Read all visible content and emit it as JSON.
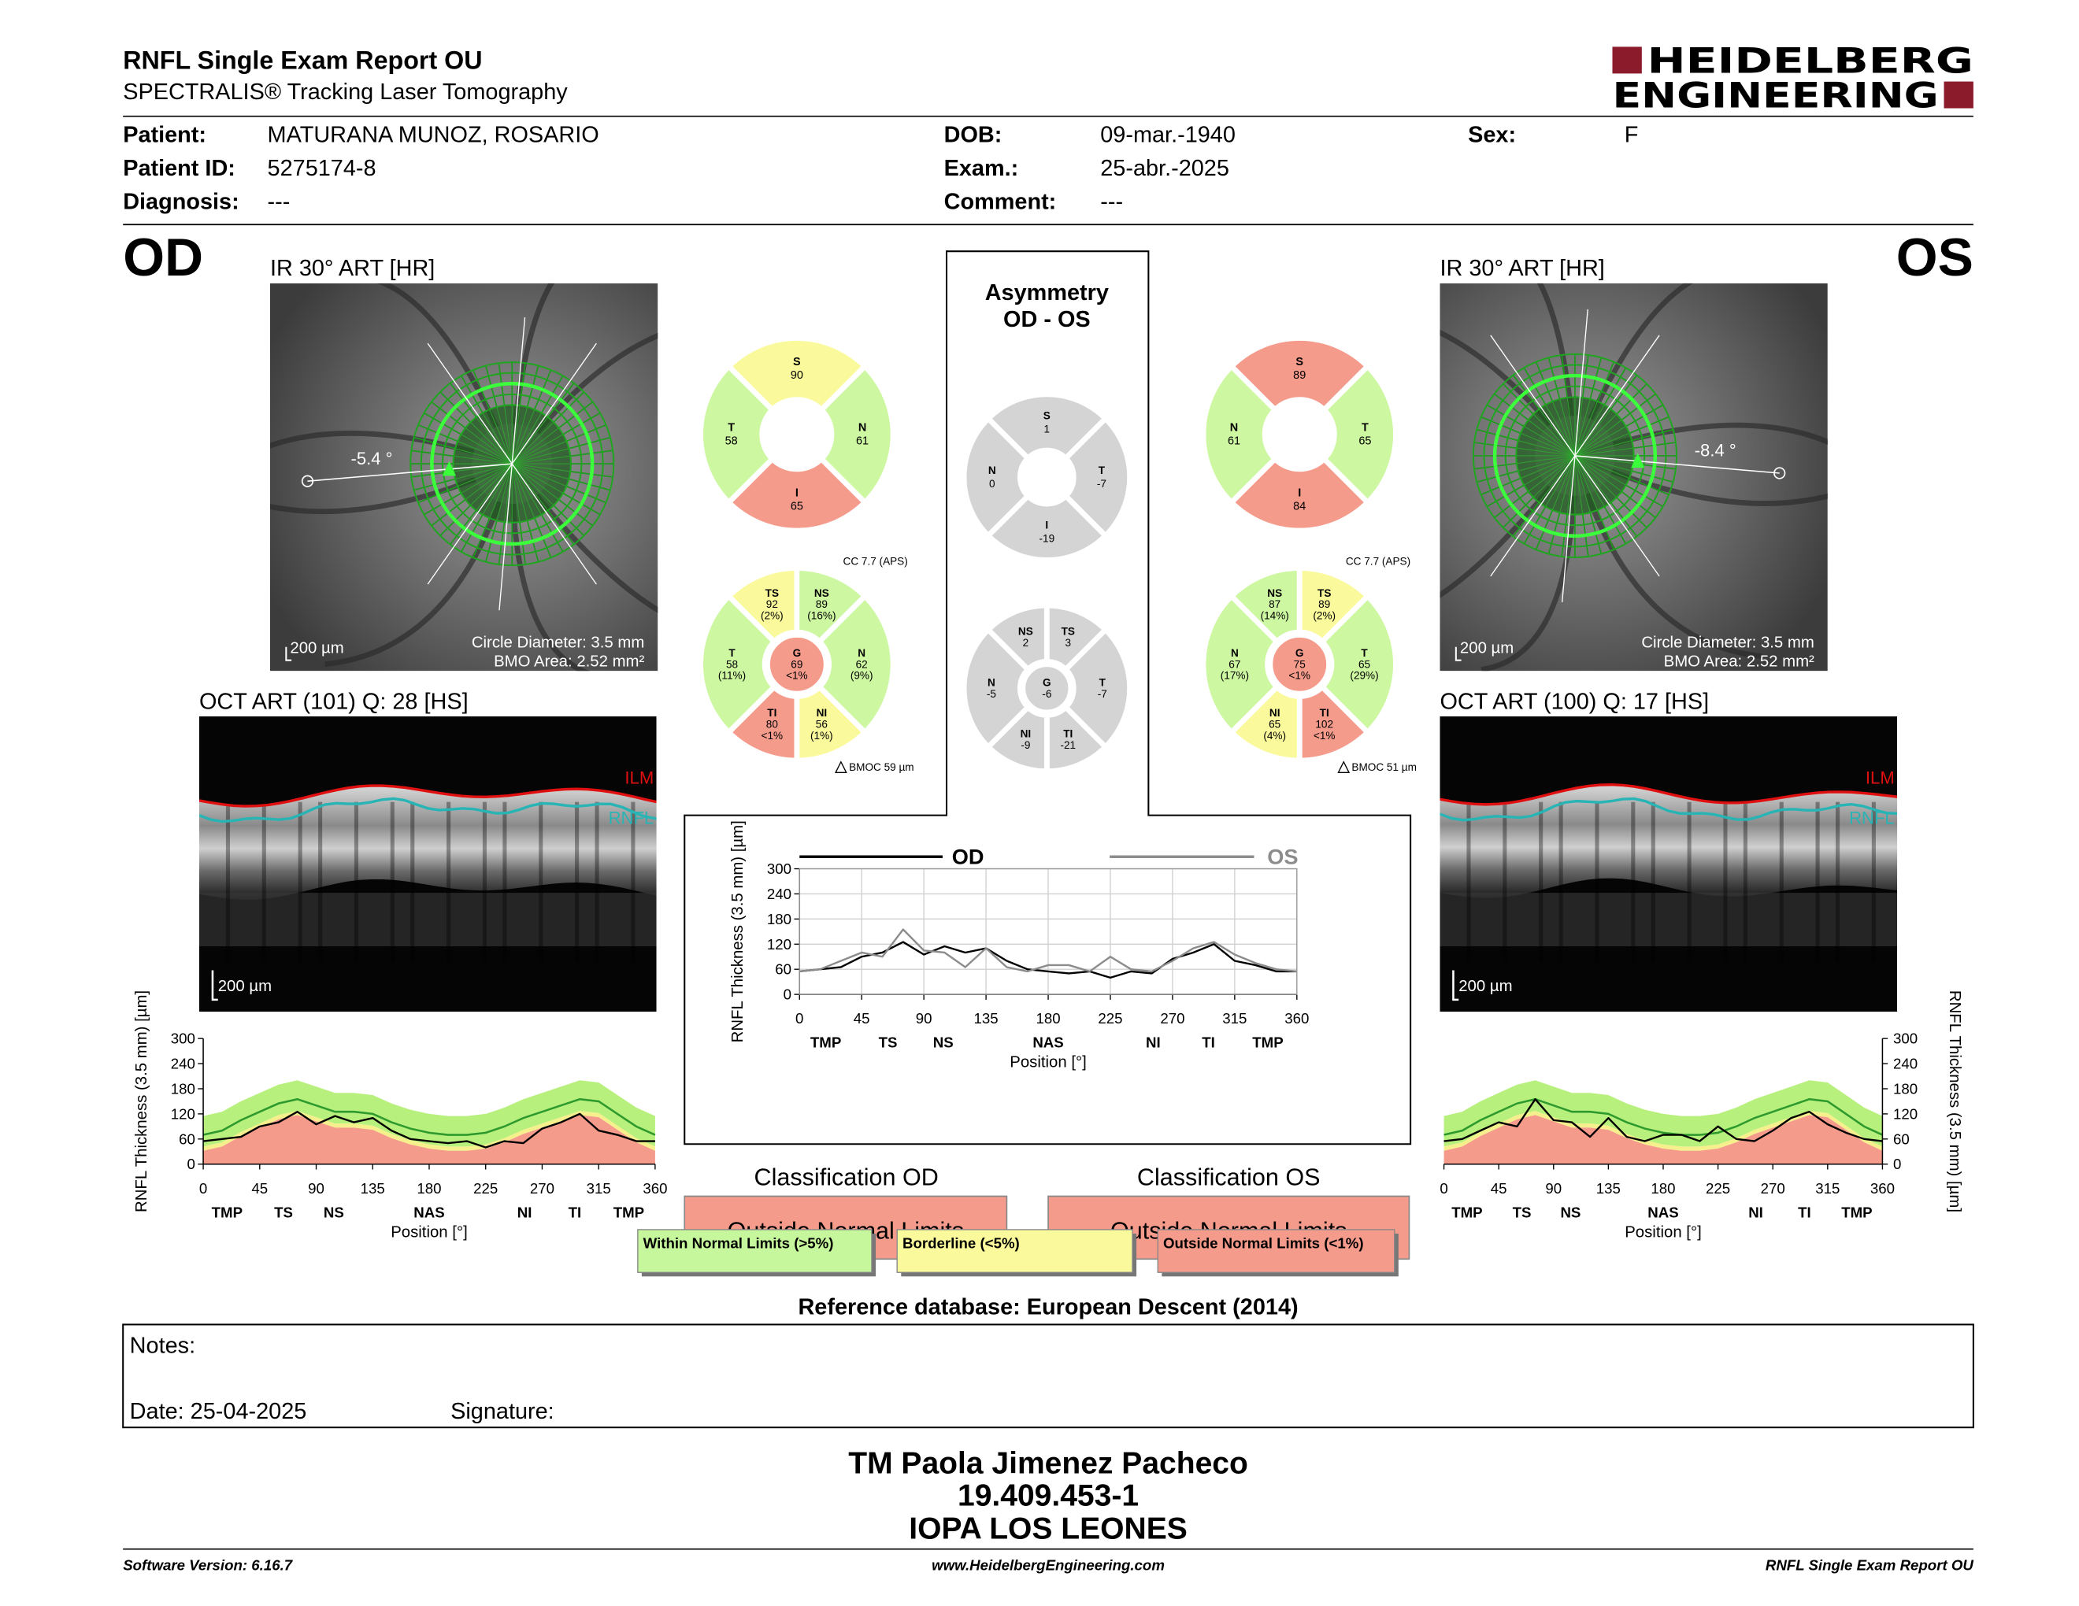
{
  "header": {
    "title": "RNFL Single Exam Report OU",
    "subtitle": "SPECTRALIS® Tracking Laser Tomography",
    "logo": [
      "HEIDELBERG",
      "ENGINEERING"
    ]
  },
  "patient": [
    {
      "label": "Patient:",
      "value": "MATURANA MUNOZ, ROSARIO"
    },
    {
      "label": "Patient ID:",
      "value": "5275174-8"
    },
    {
      "label": "Diagnosis:",
      "value": "---"
    },
    {
      "label": "DOB:",
      "value": "09-mar.-1940"
    },
    {
      "label": "Exam.:",
      "value": "25-abr.-2025"
    },
    {
      "label": "Comment:",
      "value": "---"
    },
    {
      "label": "Sex:",
      "value": "F"
    }
  ],
  "od": {
    "eye": "OD",
    "ir_title": "IR 30° ART [HR]",
    "ir_angle": "-5.4 °",
    "ir_scale": "200 µm",
    "circle_diameter": "Circle Diameter: 3.5 mm",
    "bmo_area": "BMO Area: 2.52 mm²",
    "oct_title": "OCT ART (101) Q: 28 [HS]",
    "oct_labels": [
      "ILM",
      "RNFL"
    ],
    "oct_scale": "200 µm",
    "quadrants": [
      {
        "name": "S",
        "value": 90,
        "color": "#fafa9c"
      },
      {
        "name": "N",
        "value": 61,
        "color": "#cdf7a0"
      },
      {
        "name": "I",
        "value": 65,
        "color": "#f59b8c"
      },
      {
        "name": "T",
        "value": 58,
        "color": "#cdf7a0"
      }
    ],
    "sectors": [
      {
        "name": "TS",
        "value": 92,
        "pct": "(2%)",
        "color": "#fafa9c"
      },
      {
        "name": "NS",
        "value": 89,
        "pct": "(16%)",
        "color": "#cdf7a0"
      },
      {
        "name": "N",
        "value": 62,
        "pct": "(9%)",
        "color": "#cdf7a0"
      },
      {
        "name": "NI",
        "value": 56,
        "pct": "(1%)",
        "color": "#fafa9c"
      },
      {
        "name": "TI",
        "value": 80,
        "pct": "<1%",
        "color": "#f59b8c"
      },
      {
        "name": "T",
        "value": 58,
        "pct": "(11%)",
        "color": "#cdf7a0"
      },
      {
        "name": "G",
        "value": 69,
        "pct": "<1%",
        "color": "#f59b8c"
      }
    ],
    "cc": "CC 7.7 (APS)",
    "bmoc": "BMOC 59 µm",
    "classification_title": "Classification OD",
    "classification": "Outside Normal Limits",
    "tsnit": {
      "xlim": [
        0,
        360
      ],
      "ylim": [
        0,
        300
      ],
      "xticks": [
        0,
        45,
        90,
        135,
        180,
        225,
        270,
        315,
        360
      ],
      "yticks": [
        0,
        60,
        120,
        180,
        240,
        300
      ],
      "grid": false,
      "y_axis": "left",
      "region_ticks": [
        {
          "value": 19,
          "label": "TMP"
        },
        {
          "value": 64,
          "label": "TS"
        },
        {
          "value": 104,
          "label": "NS"
        },
        {
          "value": 180,
          "label": "NAS"
        },
        {
          "value": 256,
          "label": "NI"
        },
        {
          "value": 296,
          "label": "TI"
        },
        {
          "value": 339,
          "label": "TMP"
        }
      ],
      "xlabel": "Position [°]",
      "ylabel": "RNFL Thickness (3.5 mm) [µm]",
      "x": [
        0,
        15,
        30,
        45,
        60,
        75,
        90,
        105,
        120,
        135,
        150,
        165,
        180,
        195,
        210,
        225,
        240,
        255,
        270,
        285,
        300,
        315,
        330,
        345,
        360
      ],
      "normal": {
        "colors": {
          "upper": "#b7f07c",
          "p5": "#f5f08c",
          "p1": "#f59b8c",
          "mean": "#2e9a2e"
        },
        "upper": [
          115,
          125,
          150,
          170,
          190,
          200,
          185,
          170,
          170,
          165,
          145,
          130,
          120,
          115,
          115,
          120,
          135,
          155,
          170,
          185,
          200,
          195,
          165,
          135,
          115
        ],
        "mean": [
          70,
          80,
          105,
          125,
          145,
          155,
          140,
          125,
          125,
          120,
          100,
          85,
          75,
          70,
          70,
          75,
          90,
          110,
          125,
          140,
          155,
          150,
          120,
          90,
          70
        ],
        "p5": [
          42,
          52,
          77,
          97,
          117,
          127,
          112,
          97,
          97,
          92,
          72,
          57,
          47,
          42,
          42,
          47,
          62,
          82,
          97,
          112,
          127,
          122,
          92,
          62,
          42
        ],
        "p1": [
          32,
          42,
          67,
          87,
          107,
          117,
          102,
          87,
          87,
          82,
          62,
          47,
          37,
          32,
          32,
          37,
          52,
          72,
          87,
          102,
          117,
          112,
          82,
          52,
          32
        ]
      },
      "series": [
        {
          "color": "#000000",
          "values": [
            55,
            60,
            65,
            90,
            100,
            125,
            95,
            115,
            100,
            110,
            80,
            60,
            55,
            50,
            55,
            40,
            55,
            50,
            85,
            100,
            120,
            80,
            70,
            55,
            55
          ]
        }
      ]
    }
  },
  "os": {
    "eye": "OS",
    "ir_title": "IR 30° ART [HR]",
    "ir_angle": "-8.4 °",
    "ir_scale": "200 µm",
    "circle_diameter": "Circle Diameter: 3.5 mm",
    "bmo_area": "BMO Area: 2.52 mm²",
    "oct_title": "OCT ART (100) Q: 17 [HS]",
    "oct_labels": [
      "ILM",
      "RNFL"
    ],
    "oct_scale": "200 µm",
    "quadrants": [
      {
        "name": "S",
        "value": 89,
        "color": "#f59b8c"
      },
      {
        "name": "N",
        "value": 61,
        "color": "#cdf7a0"
      },
      {
        "name": "T",
        "value": 65,
        "color": "#cdf7a0"
      },
      {
        "name": "I",
        "value": 84,
        "color": "#f59b8c"
      }
    ],
    "sectors": [
      {
        "name": "NS",
        "value": 87,
        "pct": "(14%)",
        "color": "#cdf7a0"
      },
      {
        "name": "TS",
        "value": 89,
        "pct": "(2%)",
        "color": "#fafa9c"
      },
      {
        "name": "T",
        "value": 65,
        "pct": "(29%)",
        "color": "#cdf7a0"
      },
      {
        "name": "TI",
        "value": 102,
        "pct": "<1%",
        "color": "#f59b8c"
      },
      {
        "name": "NI",
        "value": 65,
        "pct": "(4%)",
        "color": "#fafa9c"
      },
      {
        "name": "N",
        "value": 67,
        "pct": "(17%)",
        "color": "#cdf7a0"
      },
      {
        "name": "G",
        "value": 75,
        "pct": "<1%",
        "color": "#f59b8c"
      }
    ],
    "cc": "CC 7.7 (APS)",
    "bmoc": "BMOC 51 µm",
    "classification_title": "Classification OS",
    "classification": "Outside Normal Limits",
    "tsnit": {
      "xlim": [
        0,
        360
      ],
      "ylim": [
        0,
        300
      ],
      "xticks": [
        0,
        45,
        90,
        135,
        180,
        225,
        270,
        315,
        360
      ],
      "yticks": [
        0,
        60,
        120,
        180,
        240,
        300
      ],
      "grid": false,
      "y_axis": "right",
      "region_ticks": [
        {
          "value": 19,
          "label": "TMP"
        },
        {
          "value": 64,
          "label": "TS"
        },
        {
          "value": 104,
          "label": "NS"
        },
        {
          "value": 180,
          "label": "NAS"
        },
        {
          "value": 256,
          "label": "NI"
        },
        {
          "value": 296,
          "label": "TI"
        },
        {
          "value": 339,
          "label": "TMP"
        }
      ],
      "xlabel": "Position [°]",
      "ylabel": "RNFL Thickness (3.5 mm) [µm]",
      "x": [
        0,
        15,
        30,
        45,
        60,
        75,
        90,
        105,
        120,
        135,
        150,
        165,
        180,
        195,
        210,
        225,
        240,
        255,
        270,
        285,
        300,
        315,
        330,
        345,
        360
      ],
      "normal": {
        "colors": {
          "upper": "#b7f07c",
          "p5": "#f5f08c",
          "p1": "#f59b8c",
          "mean": "#2e9a2e"
        },
        "upper": [
          115,
          125,
          150,
          170,
          190,
          200,
          185,
          170,
          170,
          165,
          145,
          130,
          120,
          115,
          115,
          120,
          135,
          155,
          170,
          185,
          200,
          195,
          165,
          135,
          115
        ],
        "mean": [
          70,
          80,
          105,
          125,
          145,
          155,
          140,
          125,
          125,
          120,
          100,
          85,
          75,
          70,
          70,
          75,
          90,
          110,
          125,
          140,
          155,
          150,
          120,
          90,
          70
        ],
        "p5": [
          42,
          52,
          77,
          97,
          117,
          127,
          112,
          97,
          97,
          92,
          72,
          57,
          47,
          42,
          42,
          47,
          62,
          82,
          97,
          112,
          127,
          122,
          92,
          62,
          42
        ],
        "p1": [
          32,
          42,
          67,
          87,
          107,
          117,
          102,
          87,
          87,
          82,
          62,
          47,
          37,
          32,
          32,
          37,
          52,
          72,
          87,
          102,
          117,
          112,
          82,
          52,
          32
        ]
      },
      "series": [
        {
          "color": "#000000",
          "values": [
            55,
            60,
            80,
            100,
            90,
            155,
            105,
            100,
            65,
            110,
            65,
            55,
            70,
            70,
            55,
            90,
            60,
            55,
            80,
            110,
            125,
            95,
            75,
            60,
            55
          ]
        }
      ]
    }
  },
  "asymmetry": {
    "title": [
      "Asymmetry",
      "OD - OS"
    ],
    "quadrants": [
      {
        "name": "S",
        "value": 1,
        "color": "#d4d4d4"
      },
      {
        "name": "N",
        "value": 0,
        "color": "#d4d4d4"
      },
      {
        "name": "T",
        "value": -7,
        "color": "#d4d4d4"
      },
      {
        "name": "I",
        "value": -19,
        "color": "#d4d4d4"
      }
    ],
    "sectors": [
      {
        "name": "NS",
        "value": 2,
        "color": "#d4d4d4"
      },
      {
        "name": "TS",
        "value": 3,
        "color": "#d4d4d4"
      },
      {
        "name": "T",
        "value": -7,
        "color": "#d4d4d4"
      },
      {
        "name": "TI",
        "value": -21,
        "color": "#d4d4d4"
      },
      {
        "name": "NI",
        "value": -9,
        "color": "#d4d4d4"
      },
      {
        "name": "N",
        "value": -5,
        "color": "#d4d4d4"
      },
      {
        "name": "G",
        "value": -6,
        "color": "#d4d4d4"
      }
    ],
    "chart": {
      "xlim": [
        0,
        360
      ],
      "ylim": [
        0,
        300
      ],
      "xticks": [
        0,
        45,
        90,
        135,
        180,
        225,
        270,
        315,
        360
      ],
      "yticks": [
        0,
        60,
        120,
        180,
        240,
        300
      ],
      "grid": true,
      "region_ticks": [
        {
          "value": 19,
          "label": "TMP"
        },
        {
          "value": 64,
          "label": "TS"
        },
        {
          "value": 104,
          "label": "NS"
        },
        {
          "value": 180,
          "label": "NAS"
        },
        {
          "value": 256,
          "label": "NI"
        },
        {
          "value": 296,
          "label": "TI"
        },
        {
          "value": 339,
          "label": "TMP"
        }
      ],
      "xlabel": "Position [°]",
      "ylabel": "RNFL Thickness (3.5 mm) [µm]",
      "legend": [
        {
          "name": "OD",
          "color": "#000000"
        },
        {
          "name": "OS",
          "color": "#8c8c8c"
        }
      ]
    }
  },
  "legend": [
    {
      "label": "Within Normal Limits (>5%)",
      "color": "#c6f79c"
    },
    {
      "label": "Borderline (<5%)",
      "color": "#fafa9c"
    },
    {
      "label": "Outside Normal Limits (<1%)",
      "color": "#f59b8c"
    }
  ],
  "reference": "Reference database: European Descent (2014)",
  "notes": {
    "label": "Notes:",
    "date": "Date: 25-04-2025",
    "signature": "Signature:"
  },
  "signer": [
    "TM Paola Jimenez Pacheco",
    "19.409.453-1",
    "IOPA LOS LEONES"
  ],
  "footer": [
    "Software Version: 6.16.7",
    "www.HeidelbergEngineering.com",
    "RNFL Single Exam Report OU"
  ]
}
